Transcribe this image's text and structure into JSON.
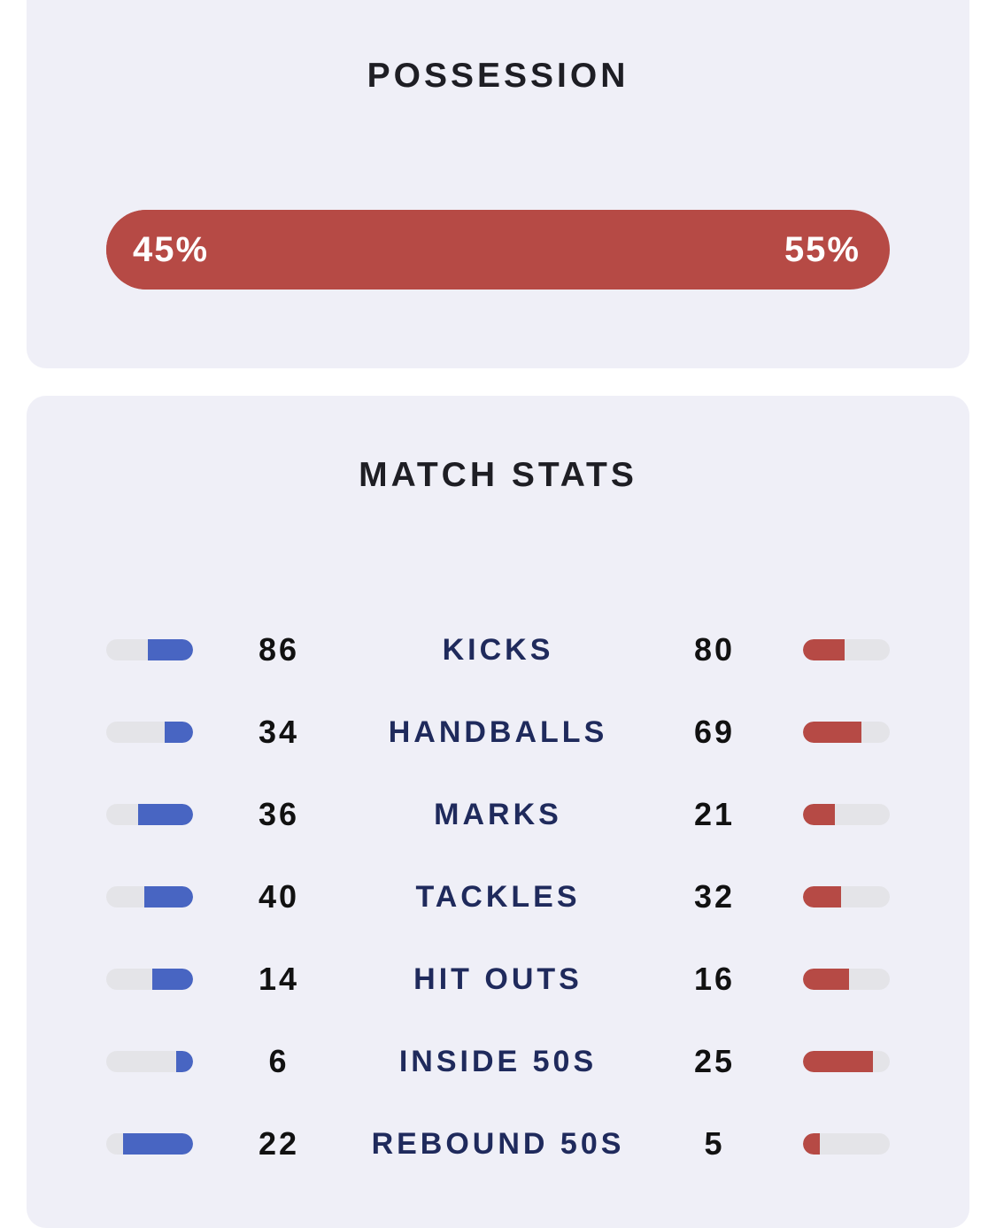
{
  "possession": {
    "title": "POSSESSION",
    "home_label": "45%",
    "away_label": "55%",
    "home_fraction": 0.45,
    "away_fraction": 0.55,
    "bar_color": "#b64a45"
  },
  "match_stats": {
    "title": "MATCH STATS",
    "home_color": "#4865c2",
    "away_color": "#b64a45",
    "rows": [
      {
        "label": "KICKS",
        "home": "86",
        "away": "80",
        "home_fill": 0.52,
        "away_fill": 0.48
      },
      {
        "label": "HANDBALLS",
        "home": "34",
        "away": "69",
        "home_fill": 0.33,
        "away_fill": 0.67
      },
      {
        "label": "MARKS",
        "home": "36",
        "away": "21",
        "home_fill": 0.63,
        "away_fill": 0.37
      },
      {
        "label": "TACKLES",
        "home": "40",
        "away": "32",
        "home_fill": 0.56,
        "away_fill": 0.44
      },
      {
        "label": "HIT OUTS",
        "home": "14",
        "away": "16",
        "home_fill": 0.47,
        "away_fill": 0.53
      },
      {
        "label": "INSIDE 50S",
        "home": "6",
        "away": "25",
        "home_fill": 0.19,
        "away_fill": 0.81
      },
      {
        "label": "REBOUND 50S",
        "home": "22",
        "away": "5",
        "home_fill": 0.81,
        "away_fill": 0.19
      }
    ]
  }
}
